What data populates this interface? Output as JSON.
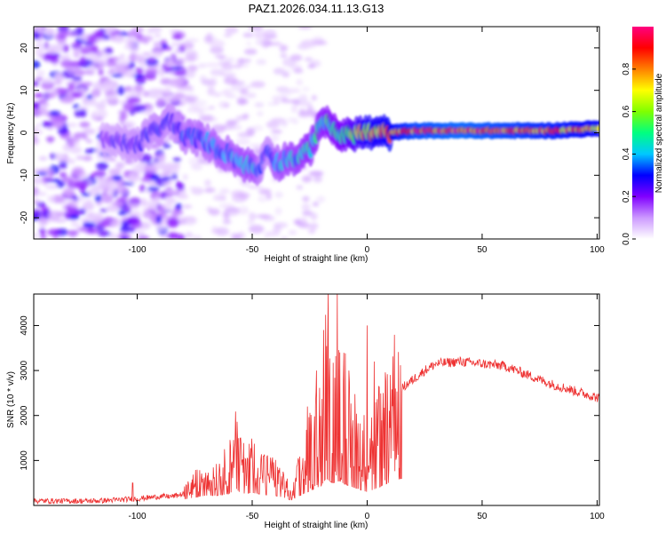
{
  "title": "PAZ1.2026.034.11.13.G13",
  "chart_data": [
    {
      "type": "heatmap",
      "xlabel": "Height of straight line (km)",
      "ylabel": "Frequency (Hz)",
      "xlim": [
        -145,
        101
      ],
      "ylim": [
        -25,
        25
      ],
      "xticks": [
        -100,
        -50,
        0,
        50,
        100
      ],
      "xtick_labels": [
        "-100",
        "-50",
        "0",
        "50",
        "100"
      ],
      "yticks": [
        -20,
        -10,
        0,
        10,
        20
      ],
      "ytick_labels": [
        "-20",
        "-10",
        "0",
        "10",
        "20"
      ],
      "colorbar": {
        "label": "Normalized spectral amplitude",
        "range": [
          0,
          1
        ],
        "ticks": [
          0.0,
          0.2,
          0.4,
          0.6,
          0.8
        ],
        "tick_labels": [
          "0.0",
          "0.2",
          "0.4",
          "0.6",
          "0.8"
        ],
        "colors": [
          "#ffffff",
          "#cc99ff",
          "#8000ff",
          "#0000ff",
          "#00c8ff",
          "#00ff80",
          "#80ff00",
          "#ffff00",
          "#ff8000",
          "#ff0000",
          "#ff0080"
        ]
      },
      "ridge": {
        "x": [
          -145,
          -110,
          -100,
          -95,
          -90,
          -85,
          -80,
          -75,
          -70,
          -65,
          -60,
          -55,
          -50,
          -47,
          -45,
          -42,
          -40,
          -38,
          -35,
          -30,
          -25,
          -20,
          -15,
          -10,
          -5,
          0,
          5,
          10,
          20,
          40,
          60,
          80,
          100
        ],
        "freq": [
          -2,
          -2,
          -3,
          0,
          1,
          3,
          -1,
          -1,
          -2,
          -4,
          -5,
          -7,
          -8,
          -9,
          -5,
          -4,
          -7,
          -7,
          -6,
          -6,
          -4,
          3,
          1,
          -1,
          0,
          0,
          0,
          0,
          0.5,
          0.5,
          0.5,
          0.5,
          1
        ],
        "amplitude": [
          0.15,
          0.25,
          0.3,
          0.3,
          0.32,
          0.3,
          0.35,
          0.38,
          0.38,
          0.4,
          0.4,
          0.42,
          0.45,
          0.35,
          0.3,
          0.3,
          0.42,
          0.42,
          0.45,
          0.45,
          0.5,
          0.5,
          0.55,
          0.6,
          0.7,
          0.8,
          0.8,
          0.85,
          0.95,
          1.0,
          0.95,
          0.9,
          0.85
        ]
      }
    },
    {
      "type": "line",
      "xlabel": "Height of straight line (km)",
      "ylabel": "SNR (10 * v/v)",
      "xlim": [
        -145,
        101
      ],
      "ylim": [
        0,
        4700
      ],
      "xticks": [
        -100,
        -50,
        0,
        50,
        100
      ],
      "xtick_labels": [
        "-100",
        "-50",
        "0",
        "50",
        "100"
      ],
      "yticks": [
        1000,
        2000,
        3000,
        4000
      ],
      "ytick_labels": [
        "1000",
        "2000",
        "3000",
        "4000"
      ],
      "color": "#ee3333",
      "series": [
        {
          "name": "SNR",
          "x": [
            -145,
            -120,
            -110,
            -100,
            -90,
            -85,
            -80,
            -75,
            -70,
            -65,
            -60,
            -57,
            -55,
            -50,
            -45,
            -40,
            -35,
            -33,
            -30,
            -25,
            -20,
            -18,
            -15,
            -12,
            -10,
            -5,
            0,
            5,
            10,
            15,
            20,
            25,
            30,
            40,
            50,
            60,
            70,
            80,
            90,
            100
          ],
          "y": [
            100,
            100,
            120,
            150,
            200,
            200,
            250,
            500,
            700,
            700,
            900,
            1500,
            900,
            1000,
            800,
            700,
            400,
            150,
            600,
            1200,
            1800,
            2600,
            2100,
            2300,
            2000,
            1500,
            1100,
            1600,
            2200,
            2600,
            2800,
            3000,
            3150,
            3200,
            3150,
            3100,
            2900,
            2700,
            2550,
            2400
          ]
        }
      ],
      "spikes": {
        "x": [
          -102,
          -68,
          -55,
          -50,
          -45,
          -30,
          -26,
          -22,
          -19,
          -17,
          -15,
          -13,
          -12,
          -10,
          -8,
          -5,
          0,
          3,
          7,
          10
        ],
        "y": [
          500,
          900,
          1500,
          1150,
          1100,
          1050,
          2200,
          3000,
          3900,
          4700,
          2700,
          4700,
          3400,
          3700,
          3000,
          1600,
          4000,
          3200,
          2500,
          2900
        ]
      }
    }
  ]
}
